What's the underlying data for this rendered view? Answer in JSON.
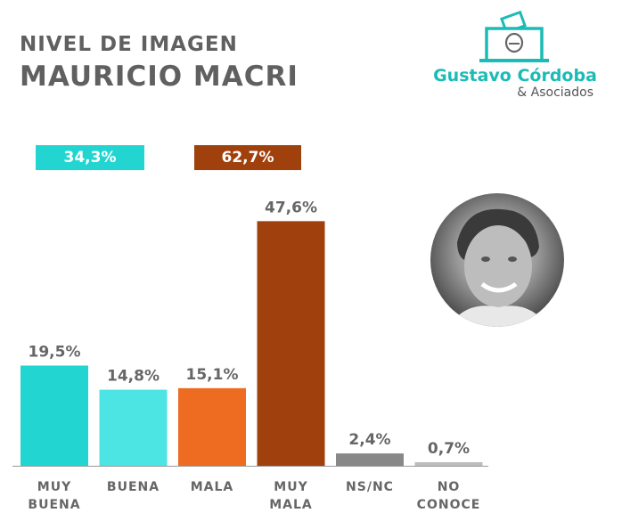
{
  "title": {
    "line1": "NIVEL DE IMAGEN",
    "line2": "MAURICIO MACRI"
  },
  "logo": {
    "name": "Gustavo Córdoba",
    "sub": "& Asociados"
  },
  "summary": {
    "positive": {
      "label": "34,3%",
      "color": "#22d5d0"
    },
    "negative": {
      "label": "62,7%",
      "color": "#a0400c"
    }
  },
  "photo": {
    "icon": "person-portrait"
  },
  "chart_data": {
    "type": "bar",
    "categories": [
      [
        "MUY",
        "BUENA"
      ],
      [
        "BUENA"
      ],
      [
        "MALA"
      ],
      [
        "MUY",
        "MALA"
      ],
      [
        "NS/NC"
      ],
      [
        "NO",
        "CONOCE"
      ]
    ],
    "values": [
      19.5,
      14.8,
      15.1,
      47.6,
      2.4,
      0.7
    ],
    "value_labels": [
      "19,5%",
      "14,8%",
      "15,1%",
      "47,6%",
      "2,4%",
      "0,7%"
    ],
    "colors": [
      "#22d5d0",
      "#4de4e4",
      "#ee6b22",
      "#a0400c",
      "#888888",
      "#bdbdbd"
    ],
    "title": "",
    "xlabel": "",
    "ylabel": "",
    "ylim": [
      0,
      50
    ],
    "grid": false,
    "legend": "none"
  }
}
